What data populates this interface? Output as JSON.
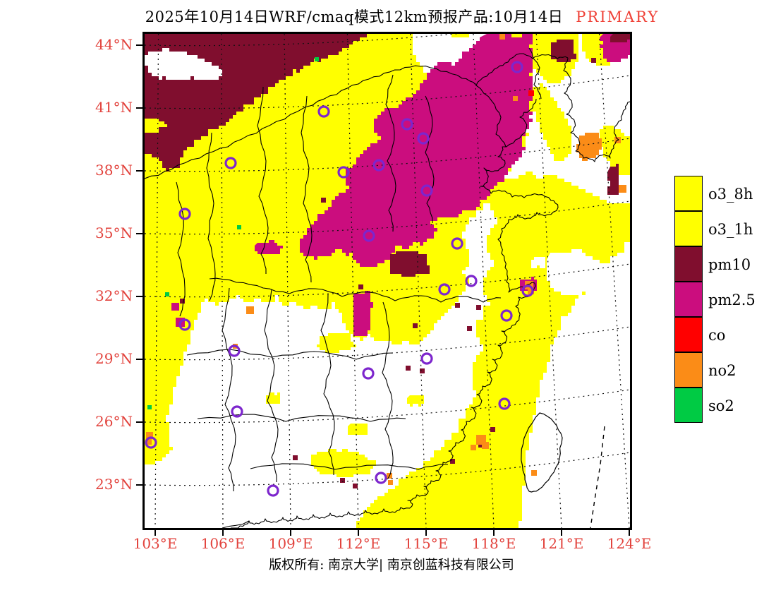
{
  "title": {
    "text": "2025年10月14日WRF/cmaq模式12km预报产品:10月14日",
    "tag": "PRIMARY",
    "tag_color": "#EF4137"
  },
  "axes": {
    "label_color": "#E2423C",
    "x_ticks": [
      "103°E",
      "106°E",
      "109°E",
      "112°E",
      "115°E",
      "118°E",
      "121°E",
      "124°E"
    ],
    "y_ticks": [
      "44°N",
      "41°N",
      "38°N",
      "35°N",
      "32°N",
      "29°N",
      "26°N",
      "23°N"
    ]
  },
  "legend": {
    "items": [
      {
        "label": "o3_8h",
        "color": "#FFFF00"
      },
      {
        "label": "o3_1h",
        "color": "#FFFF00"
      },
      {
        "label": "pm10",
        "color": "#800E2E"
      },
      {
        "label": "pm2.5",
        "color": "#CB0D7E"
      },
      {
        "label": "co",
        "color": "#FF0000"
      },
      {
        "label": "no2",
        "color": "#FB8C17"
      },
      {
        "label": "so2",
        "color": "#00CB44"
      }
    ]
  },
  "map": {
    "marker_color": "#7D26CD",
    "station_markers": 24,
    "features": [
      {
        "name": "pm10-region-northwest",
        "pollutant": "pm10"
      },
      {
        "name": "o3-region-north-and-west",
        "pollutant": "o3_8h"
      },
      {
        "name": "pm2.5-region-north-china-plain",
        "pollutant": "pm2.5"
      },
      {
        "name": "o3-band-southeast-coast-and-yellow-sea",
        "pollutant": "o3_8h"
      },
      {
        "name": "no2-spots-seoul-shanghai-xiamen",
        "pollutant": "no2"
      },
      {
        "name": "co-spot-northeast",
        "pollutant": "co"
      },
      {
        "name": "so2-spots-west",
        "pollutant": "so2"
      },
      {
        "name": "clean-region-central-south",
        "pollutant": "none"
      }
    ]
  },
  "footer": {
    "text": "版权所有: 南京大学| 南京创蓝科技有限公司"
  }
}
